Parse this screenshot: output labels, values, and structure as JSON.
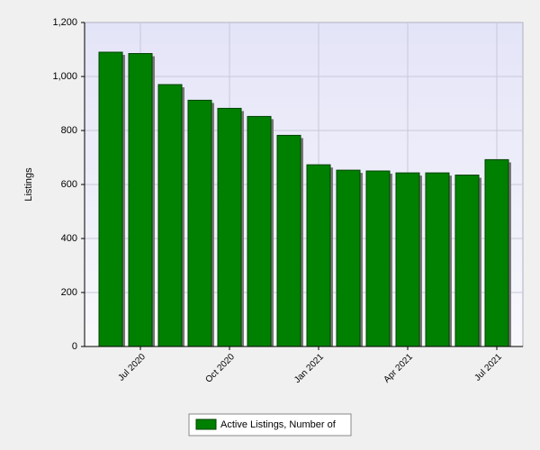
{
  "chart_data": {
    "type": "bar",
    "y_label": "Listings",
    "categories": [
      null,
      "Jul 2020",
      null,
      null,
      "Oct 2020",
      null,
      null,
      "Jan 2021",
      null,
      null,
      "Apr 2021",
      null,
      null,
      "Jul 2021"
    ],
    "series": [
      {
        "name": "Active Listings, Number of",
        "color": "#008000",
        "values": [
          1090,
          1085,
          970,
          912,
          882,
          852,
          782,
          673,
          653,
          650,
          643,
          643,
          635,
          692
        ]
      }
    ],
    "ylim": [
      0,
      1200
    ],
    "yticks": [
      0,
      200,
      400,
      600,
      800,
      {
        "value": 1000,
        "label": "1,000"
      },
      {
        "value": 1200,
        "label": "1,200"
      }
    ],
    "grid": true
  }
}
